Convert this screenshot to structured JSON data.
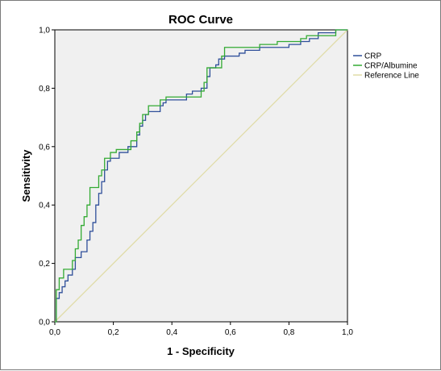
{
  "chart_data": {
    "type": "line",
    "title": "ROC Curve",
    "xlabel": "1 - Specificity",
    "ylabel": "Sensitivity",
    "xlim": [
      0,
      1
    ],
    "ylim": [
      0,
      1
    ],
    "xticks": [
      "0,0",
      "0,2",
      "0,4",
      "0,6",
      "0,8",
      "1,0"
    ],
    "yticks": [
      "0,0",
      "0,2",
      "0,4",
      "0,6",
      "0,8",
      "1,0"
    ],
    "legend_position": "right",
    "grid": false,
    "plot_background": "#f0f0f0",
    "series": [
      {
        "name": "CRP",
        "color": "#2f4f9a",
        "x": [
          0.0,
          0.005,
          0.005,
          0.015,
          0.015,
          0.025,
          0.025,
          0.035,
          0.035,
          0.045,
          0.045,
          0.06,
          0.06,
          0.07,
          0.07,
          0.09,
          0.09,
          0.11,
          0.11,
          0.12,
          0.12,
          0.13,
          0.13,
          0.14,
          0.14,
          0.15,
          0.15,
          0.16,
          0.16,
          0.17,
          0.17,
          0.18,
          0.18,
          0.19,
          0.19,
          0.22,
          0.22,
          0.25,
          0.25,
          0.28,
          0.28,
          0.29,
          0.29,
          0.3,
          0.3,
          0.31,
          0.31,
          0.32,
          0.32,
          0.36,
          0.36,
          0.37,
          0.37,
          0.38,
          0.38,
          0.45,
          0.45,
          0.47,
          0.47,
          0.5,
          0.5,
          0.52,
          0.52,
          0.53,
          0.53,
          0.55,
          0.55,
          0.56,
          0.56,
          0.58,
          0.58,
          0.63,
          0.63,
          0.65,
          0.65,
          0.7,
          0.7,
          0.8,
          0.8,
          0.84,
          0.84,
          0.87,
          0.87,
          0.9,
          0.9,
          0.96,
          0.96,
          1.0
        ],
        "y": [
          0.0,
          0.0,
          0.08,
          0.08,
          0.1,
          0.1,
          0.12,
          0.12,
          0.14,
          0.14,
          0.16,
          0.16,
          0.18,
          0.18,
          0.22,
          0.22,
          0.24,
          0.24,
          0.28,
          0.28,
          0.31,
          0.31,
          0.34,
          0.34,
          0.4,
          0.4,
          0.44,
          0.44,
          0.48,
          0.48,
          0.52,
          0.52,
          0.55,
          0.55,
          0.56,
          0.56,
          0.58,
          0.58,
          0.6,
          0.6,
          0.64,
          0.64,
          0.67,
          0.67,
          0.69,
          0.69,
          0.71,
          0.71,
          0.72,
          0.72,
          0.74,
          0.74,
          0.75,
          0.75,
          0.76,
          0.76,
          0.78,
          0.78,
          0.79,
          0.79,
          0.8,
          0.8,
          0.84,
          0.84,
          0.87,
          0.87,
          0.88,
          0.88,
          0.9,
          0.9,
          0.91,
          0.91,
          0.92,
          0.92,
          0.93,
          0.93,
          0.94,
          0.94,
          0.95,
          0.95,
          0.96,
          0.96,
          0.97,
          0.97,
          0.99,
          0.99,
          1.0,
          1.0
        ]
      },
      {
        "name": "CRP/Albumine",
        "color": "#33aa33",
        "x": [
          0.0,
          0.005,
          0.005,
          0.015,
          0.015,
          0.03,
          0.03,
          0.06,
          0.06,
          0.07,
          0.07,
          0.08,
          0.08,
          0.09,
          0.09,
          0.1,
          0.1,
          0.11,
          0.11,
          0.12,
          0.12,
          0.15,
          0.15,
          0.16,
          0.16,
          0.17,
          0.17,
          0.19,
          0.19,
          0.21,
          0.21,
          0.26,
          0.26,
          0.28,
          0.28,
          0.29,
          0.29,
          0.3,
          0.3,
          0.32,
          0.32,
          0.36,
          0.36,
          0.38,
          0.38,
          0.5,
          0.5,
          0.51,
          0.51,
          0.52,
          0.52,
          0.57,
          0.57,
          0.58,
          0.58,
          0.7,
          0.7,
          0.76,
          0.76,
          0.84,
          0.84,
          0.86,
          0.86,
          0.96,
          0.96,
          1.0
        ],
        "y": [
          0.0,
          0.0,
          0.11,
          0.11,
          0.15,
          0.15,
          0.18,
          0.18,
          0.21,
          0.21,
          0.25,
          0.25,
          0.28,
          0.28,
          0.33,
          0.33,
          0.36,
          0.36,
          0.4,
          0.4,
          0.46,
          0.46,
          0.5,
          0.5,
          0.52,
          0.52,
          0.56,
          0.56,
          0.58,
          0.58,
          0.59,
          0.59,
          0.62,
          0.62,
          0.65,
          0.65,
          0.68,
          0.68,
          0.71,
          0.71,
          0.74,
          0.74,
          0.76,
          0.76,
          0.77,
          0.77,
          0.79,
          0.79,
          0.82,
          0.82,
          0.87,
          0.87,
          0.91,
          0.91,
          0.94,
          0.94,
          0.95,
          0.95,
          0.96,
          0.96,
          0.97,
          0.97,
          0.98,
          0.98,
          1.0,
          1.0
        ]
      },
      {
        "name": "Reference Line",
        "color": "#e0dca8",
        "x": [
          0.0,
          1.0
        ],
        "y": [
          0.0,
          1.0
        ]
      }
    ]
  }
}
